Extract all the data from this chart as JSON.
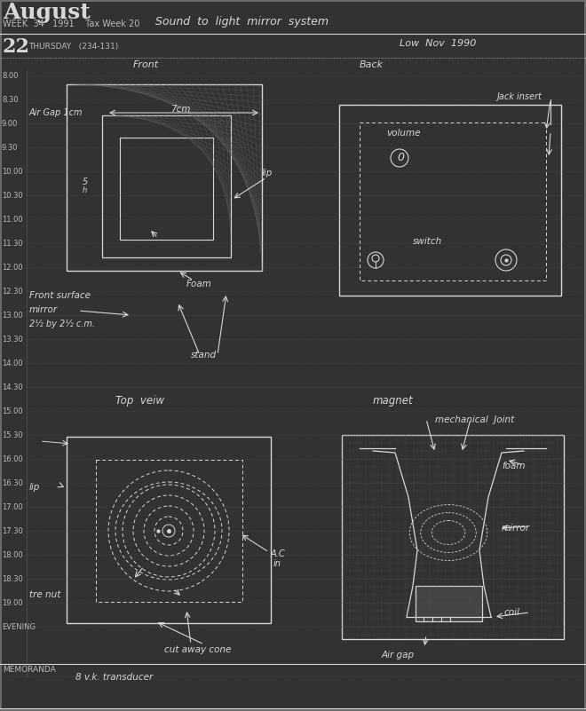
{
  "bg_color": "#323232",
  "grid_color": "#555555",
  "white": "#d8d8d8",
  "text_color": "#bbbbbb",
  "fig_width": 6.6,
  "fig_height": 8.01,
  "dpi": 100,
  "time_labels": [
    "8.00",
    "8.30",
    "9.00",
    "9.30",
    "10.00",
    "10.30",
    "11.00",
    "11.30",
    "12.00",
    "12.30",
    "13.00",
    "13.30",
    "14.00",
    "14.30",
    "15.00",
    "15.30",
    "16.00",
    "16.30",
    "17.00",
    "17.30",
    "18.00",
    "18.30",
    "19.00",
    "EVENING"
  ]
}
